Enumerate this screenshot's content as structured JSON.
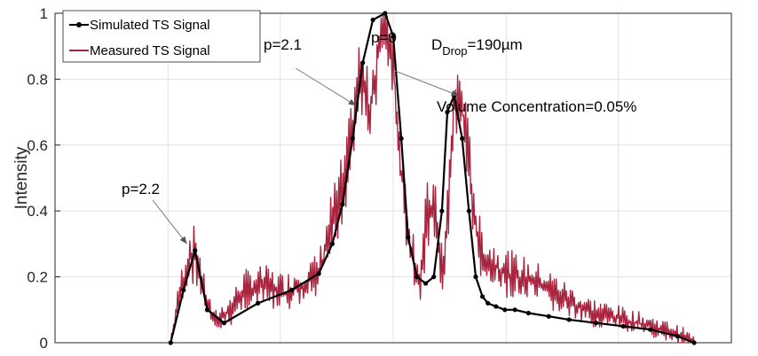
{
  "chart_data": {
    "type": "line",
    "title": "",
    "xlabel": "",
    "ylabel": "Intensity",
    "xlim": [
      0,
      1
    ],
    "ylim": [
      0,
      1
    ],
    "yticks": [
      0,
      0.2,
      0.4,
      0.6,
      0.8,
      1
    ],
    "ytick_labels": [
      "0",
      "0.2",
      "0.4",
      "0.6",
      "0.8",
      "1"
    ],
    "grid": true,
    "legend_position": "top-left",
    "series": [
      {
        "name": "Simulated TS Signal",
        "color": "#000000",
        "marker": "dot",
        "x": [
          0.171,
          0.19,
          0.207,
          0.225,
          0.25,
          0.3,
          0.35,
          0.39,
          0.41,
          0.425,
          0.44,
          0.455,
          0.47,
          0.488,
          0.5,
          0.512,
          0.522,
          0.535,
          0.548,
          0.56,
          0.572,
          0.58,
          0.59,
          0.602,
          0.612,
          0.622,
          0.632,
          0.64,
          0.652,
          0.665,
          0.68,
          0.7,
          0.73,
          0.76,
          0.8,
          0.84,
          0.88,
          0.92,
          0.945
        ],
        "y": [
          0.0,
          0.16,
          0.28,
          0.1,
          0.06,
          0.12,
          0.16,
          0.21,
          0.3,
          0.42,
          0.62,
          0.85,
          0.98,
          1.0,
          0.93,
          0.62,
          0.32,
          0.2,
          0.18,
          0.2,
          0.4,
          0.7,
          0.75,
          0.62,
          0.4,
          0.2,
          0.14,
          0.12,
          0.11,
          0.1,
          0.1,
          0.09,
          0.08,
          0.07,
          0.06,
          0.05,
          0.04,
          0.02,
          0.0
        ]
      },
      {
        "name": "Measured TS Signal",
        "color": "#a8243f",
        "marker": "none",
        "x": [
          0.171,
          0.185,
          0.2,
          0.21,
          0.22,
          0.235,
          0.26,
          0.28,
          0.31,
          0.34,
          0.37,
          0.39,
          0.41,
          0.43,
          0.45,
          0.465,
          0.48,
          0.49,
          0.5,
          0.51,
          0.525,
          0.54,
          0.55,
          0.56,
          0.575,
          0.59,
          0.6,
          0.612,
          0.625,
          0.64,
          0.66,
          0.68,
          0.71,
          0.74,
          0.78,
          0.82,
          0.86,
          0.9,
          0.93,
          0.945
        ],
        "y": [
          0.0,
          0.15,
          0.27,
          0.26,
          0.15,
          0.06,
          0.1,
          0.16,
          0.17,
          0.15,
          0.18,
          0.2,
          0.36,
          0.5,
          0.82,
          0.7,
          0.9,
          0.96,
          0.85,
          0.55,
          0.3,
          0.18,
          0.38,
          0.4,
          0.2,
          0.72,
          0.74,
          0.55,
          0.3,
          0.24,
          0.22,
          0.2,
          0.18,
          0.15,
          0.1,
          0.08,
          0.06,
          0.04,
          0.02,
          0.0
        ]
      }
    ],
    "annotations": [
      {
        "text": "p=2.2",
        "arrow_to": [
          0.195,
          0.3
        ]
      },
      {
        "text": "p=2.1",
        "arrow_to": [
          0.445,
          0.72
        ]
      },
      {
        "text": "p=0",
        "arrow_to": [
          0.597,
          0.75
        ]
      }
    ],
    "text_labels": {
      "drop_main": "D",
      "drop_sub": "Drop",
      "drop_value": "=190µm",
      "volume": "Volume Concentration=0.05%"
    }
  }
}
